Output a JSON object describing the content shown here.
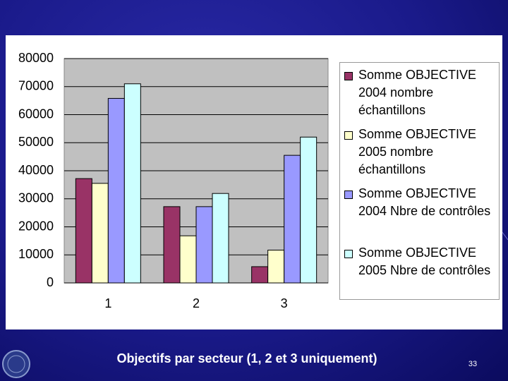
{
  "chart_data": {
    "type": "bar",
    "categories": [
      "1",
      "2",
      "3"
    ],
    "series": [
      {
        "name": "Somme OBJECTIVE 2004 nombre échantillons",
        "color": "#993366",
        "values": [
          37200,
          27200,
          5800
        ]
      },
      {
        "name": "Somme OBJECTIVE 2005 nombre échantillons",
        "color": "#ffffcc",
        "values": [
          35500,
          16800,
          11700
        ]
      },
      {
        "name": "Somme OBJECTIVE 2004 Nbre de contrôles",
        "color": "#9999ff",
        "values": [
          65800,
          27200,
          45500
        ]
      },
      {
        "name": "Somme OBJECTIVE 2005 Nbre de contrôles",
        "color": "#ccffff",
        "values": [
          71000,
          31900,
          52000
        ]
      }
    ],
    "ylim": [
      0,
      80000
    ],
    "yticks": [
      0,
      10000,
      20000,
      30000,
      40000,
      50000,
      60000,
      70000,
      80000
    ],
    "grid": true,
    "legend": "right"
  },
  "caption": "Objectifs par secteur (1, 2 et 3 uniquement)",
  "page_number": "33"
}
